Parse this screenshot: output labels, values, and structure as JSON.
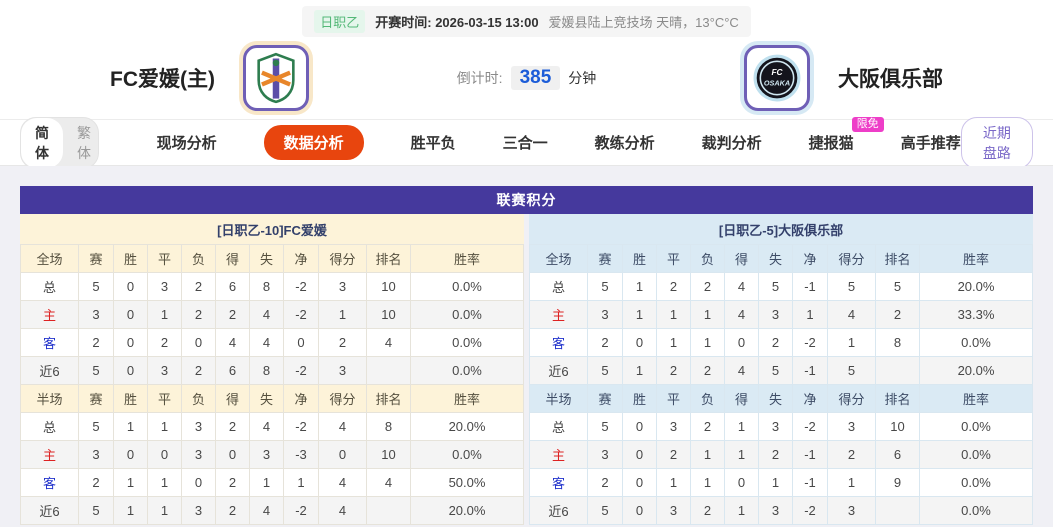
{
  "top_bar": {
    "league": "日职乙",
    "kickoff_label": "开赛时间:",
    "kickoff_value": "2026-03-15 13:00",
    "venue_weather": "爱媛县陆上竞技场 天晴，13°C°C"
  },
  "match_header": {
    "home_name": "FC爱媛(主)",
    "away_name": "大阪俱乐部",
    "countdown_label": "倒计时:",
    "countdown_value": "385",
    "countdown_unit": "分钟"
  },
  "nav": {
    "lang_simplified": "简体",
    "lang_traditional": "繁体",
    "tabs": [
      {
        "label": "现场分析"
      },
      {
        "label": "数据分析"
      },
      {
        "label": "胜平负"
      },
      {
        "label": "三合一"
      },
      {
        "label": "教练分析"
      },
      {
        "label": "裁判分析"
      },
      {
        "label": "捷报猫"
      },
      {
        "label": "高手推荐"
      }
    ],
    "active_tab": "数据分析",
    "free_badge": "限免",
    "recent_button": "近期盘路"
  },
  "colors": {
    "accent_purple": "#45399d",
    "active_tab_orange": "#e8450e",
    "free_badge_pink": "#ee3ec8",
    "home_header_cream": "#fdf3d9",
    "away_header_blue": "#daeaf4",
    "home_label_red": "#dd2222",
    "away_label_blue": "#2233cc",
    "countdown_blue": "#1c5cd8",
    "league_tag_green": "#53b877"
  },
  "league_table": {
    "title": "联赛积分",
    "sides": [
      {
        "id": "home",
        "header": "[日职乙-10]FC爱媛",
        "sections": [
          {
            "scope": "全场",
            "columns": [
              "赛",
              "胜",
              "平",
              "负",
              "得",
              "失",
              "净",
              "得分",
              "排名",
              "胜率"
            ],
            "rows": [
              {
                "label": "总",
                "type": "total",
                "values": [
                  "5",
                  "0",
                  "3",
                  "2",
                  "6",
                  "8",
                  "-2",
                  "3",
                  "10",
                  "0.0%"
                ]
              },
              {
                "label": "主",
                "type": "home",
                "values": [
                  "3",
                  "0",
                  "1",
                  "2",
                  "2",
                  "4",
                  "-2",
                  "1",
                  "10",
                  "0.0%"
                ]
              },
              {
                "label": "客",
                "type": "away",
                "values": [
                  "2",
                  "0",
                  "2",
                  "0",
                  "4",
                  "4",
                  "0",
                  "2",
                  "4",
                  "0.0%"
                ]
              },
              {
                "label": "近6",
                "type": "recent",
                "values": [
                  "5",
                  "0",
                  "3",
                  "2",
                  "6",
                  "8",
                  "-2",
                  "3",
                  "",
                  "0.0%"
                ]
              }
            ]
          },
          {
            "scope": "半场",
            "columns": [
              "赛",
              "胜",
              "平",
              "负",
              "得",
              "失",
              "净",
              "得分",
              "排名",
              "胜率"
            ],
            "rows": [
              {
                "label": "总",
                "type": "total",
                "values": [
                  "5",
                  "1",
                  "1",
                  "3",
                  "2",
                  "4",
                  "-2",
                  "4",
                  "8",
                  "20.0%"
                ]
              },
              {
                "label": "主",
                "type": "home",
                "values": [
                  "3",
                  "0",
                  "0",
                  "3",
                  "0",
                  "3",
                  "-3",
                  "0",
                  "10",
                  "0.0%"
                ]
              },
              {
                "label": "客",
                "type": "away",
                "values": [
                  "2",
                  "1",
                  "1",
                  "0",
                  "2",
                  "1",
                  "1",
                  "4",
                  "4",
                  "50.0%"
                ]
              },
              {
                "label": "近6",
                "type": "recent",
                "values": [
                  "5",
                  "1",
                  "1",
                  "3",
                  "2",
                  "4",
                  "-2",
                  "4",
                  "",
                  "20.0%"
                ]
              }
            ]
          }
        ]
      },
      {
        "id": "away",
        "header": "[日职乙-5]大阪俱乐部",
        "sections": [
          {
            "scope": "全场",
            "columns": [
              "赛",
              "胜",
              "平",
              "负",
              "得",
              "失",
              "净",
              "得分",
              "排名",
              "胜率"
            ],
            "rows": [
              {
                "label": "总",
                "type": "total",
                "values": [
                  "5",
                  "1",
                  "2",
                  "2",
                  "4",
                  "5",
                  "-1",
                  "5",
                  "5",
                  "20.0%"
                ]
              },
              {
                "label": "主",
                "type": "home",
                "values": [
                  "3",
                  "1",
                  "1",
                  "1",
                  "4",
                  "3",
                  "1",
                  "4",
                  "2",
                  "33.3%"
                ]
              },
              {
                "label": "客",
                "type": "away",
                "values": [
                  "2",
                  "0",
                  "1",
                  "1",
                  "0",
                  "2",
                  "-2",
                  "1",
                  "8",
                  "0.0%"
                ]
              },
              {
                "label": "近6",
                "type": "recent",
                "values": [
                  "5",
                  "1",
                  "2",
                  "2",
                  "4",
                  "5",
                  "-1",
                  "5",
                  "",
                  "20.0%"
                ]
              }
            ]
          },
          {
            "scope": "半场",
            "columns": [
              "赛",
              "胜",
              "平",
              "负",
              "得",
              "失",
              "净",
              "得分",
              "排名",
              "胜率"
            ],
            "rows": [
              {
                "label": "总",
                "type": "total",
                "values": [
                  "5",
                  "0",
                  "3",
                  "2",
                  "1",
                  "3",
                  "-2",
                  "3",
                  "10",
                  "0.0%"
                ]
              },
              {
                "label": "主",
                "type": "home",
                "values": [
                  "3",
                  "0",
                  "2",
                  "1",
                  "1",
                  "2",
                  "-1",
                  "2",
                  "6",
                  "0.0%"
                ]
              },
              {
                "label": "客",
                "type": "away",
                "values": [
                  "2",
                  "0",
                  "1",
                  "1",
                  "0",
                  "1",
                  "-1",
                  "1",
                  "9",
                  "0.0%"
                ]
              },
              {
                "label": "近6",
                "type": "recent",
                "values": [
                  "5",
                  "0",
                  "3",
                  "2",
                  "1",
                  "3",
                  "-2",
                  "3",
                  "",
                  "0.0%"
                ]
              }
            ]
          }
        ]
      }
    ]
  }
}
